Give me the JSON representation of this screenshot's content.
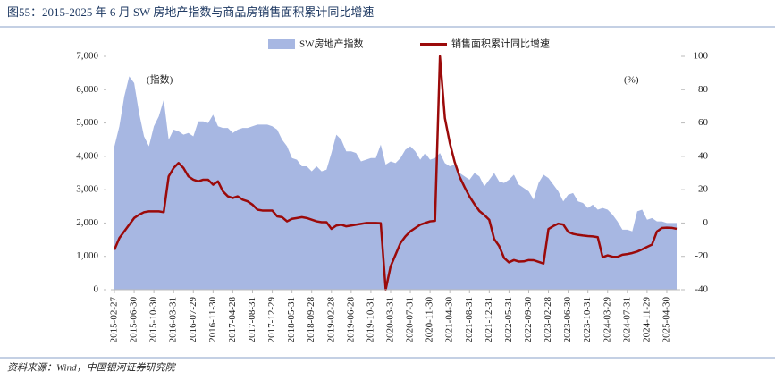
{
  "title": "图55：2015-2025 年 6 月 SW 房地产指数与商品房销售面积累计同比增速",
  "source": "资料来源：Wind，中国银河证券研究院",
  "chart_data": {
    "type": "combo",
    "annotations": [
      "(指数)",
      "(%)"
    ],
    "categories": [
      "2015-02-27",
      null,
      null,
      null,
      "2015-06-30",
      null,
      null,
      null,
      "2015-10-30",
      null,
      null,
      null,
      "2016-03-31",
      null,
      null,
      null,
      "2016-07-29",
      null,
      null,
      null,
      "2016-11-30",
      null,
      null,
      null,
      "2017-04-28",
      null,
      null,
      null,
      "2017-08-31",
      null,
      null,
      null,
      "2017-12-29",
      null,
      null,
      null,
      "2018-05-31",
      null,
      null,
      null,
      "2018-09-28",
      null,
      null,
      null,
      "2019-02-28",
      null,
      null,
      null,
      "2019-06-28",
      null,
      null,
      null,
      "2019-10-31",
      null,
      null,
      null,
      "2020-03-31",
      null,
      null,
      null,
      "2020-07-31",
      null,
      null,
      null,
      "2020-11-30",
      null,
      null,
      null,
      "2021-04-30",
      null,
      null,
      null,
      "2021-08-31",
      null,
      null,
      null,
      "2021-12-31",
      null,
      null,
      null,
      "2022-05-31",
      null,
      null,
      null,
      "2022-09-30",
      null,
      null,
      null,
      "2023-02-28",
      null,
      null,
      null,
      "2023-06-30",
      null,
      null,
      null,
      "2023-10-31",
      null,
      null,
      null,
      "2024-03-29",
      null,
      null,
      null,
      "2024-07-31",
      null,
      null,
      null,
      "2024-11-29",
      null,
      null,
      null,
      "2025-04-30",
      null,
      null
    ],
    "series": [
      {
        "name": "SW房地产指数",
        "type": "area",
        "color": "#a7b7e2",
        "values": [
          4300,
          4900,
          5800,
          6400,
          6200,
          5300,
          4600,
          4300,
          4900,
          5200,
          5700,
          4500,
          4800,
          4750,
          4650,
          4700,
          4600,
          5050,
          5050,
          5000,
          5250,
          4900,
          4850,
          4850,
          4700,
          4800,
          4850,
          4850,
          4900,
          4950,
          4950,
          4950,
          4900,
          4800,
          4500,
          4300,
          3950,
          3900,
          3700,
          3700,
          3550,
          3700,
          3550,
          3600,
          4100,
          4650,
          4500,
          4150,
          4150,
          4100,
          3850,
          3900,
          3950,
          3950,
          4350,
          3750,
          3850,
          3800,
          3950,
          4200,
          4300,
          4150,
          3900,
          4100,
          3900,
          3950,
          4100,
          3800,
          3700,
          3750,
          3500,
          3400,
          3300,
          3500,
          3400,
          3100,
          3300,
          3500,
          3250,
          3200,
          3300,
          3450,
          3150,
          3050,
          2950,
          2700,
          3200,
          3450,
          3350,
          3150,
          2950,
          2650,
          2850,
          2900,
          2650,
          2600,
          2450,
          2550,
          2400,
          2450,
          2400,
          2250,
          2050,
          1800,
          1800,
          1750,
          2350,
          2400,
          2100,
          2150,
          2050,
          2050,
          2000,
          2000,
          2000
        ]
      },
      {
        "name": "销售面积累计同比增速",
        "type": "line",
        "axis": "y2",
        "color": "#9b0a0a",
        "values": [
          -16,
          -9,
          -5,
          -1,
          3,
          5,
          6.5,
          7,
          7,
          7,
          6.5,
          28,
          33,
          36,
          33,
          28,
          26,
          25,
          26,
          26,
          23,
          25,
          19,
          16,
          15,
          16,
          14,
          13,
          11,
          8,
          7.5,
          7.5,
          7.5,
          4,
          3.5,
          1,
          2.5,
          3,
          3.5,
          3,
          2,
          1,
          0.5,
          0.5,
          -3.5,
          -1.5,
          -1,
          -2,
          -1.5,
          -1,
          -0.5,
          0,
          0,
          0,
          -0.1,
          -39.9,
          -26,
          -19,
          -12,
          -8,
          -5,
          -3,
          -1,
          0,
          1,
          1.3,
          100,
          63,
          48,
          36.5,
          27.7,
          21.5,
          15.9,
          11.3,
          7.2,
          4.8,
          1.9,
          -9.6,
          -13.8,
          -20.9,
          -23.6,
          -22.2,
          -23.1,
          -23,
          -22.2,
          -22.3,
          -23.3,
          -24.3,
          -3.6,
          -1.8,
          -0.4,
          -0.9,
          -5.3,
          -6.5,
          -7.1,
          -7.5,
          -7.8,
          -8,
          -8.5,
          -20.5,
          -19.4,
          -20.2,
          -20.3,
          -19,
          -18.6,
          -18,
          -17.1,
          -15.8,
          -14.3,
          -12.9,
          -5.1,
          -3,
          -2.8,
          -2.9,
          -3.5
        ]
      }
    ],
    "ylim": [
      0,
      7000
    ],
    "yticks": [
      0,
      {
        "value": 1000,
        "label": "1,000"
      },
      {
        "value": 2000,
        "label": "2,000"
      },
      {
        "value": 3000,
        "label": "3,000"
      },
      {
        "value": 4000,
        "label": "4,000"
      },
      {
        "value": 5000,
        "label": "5,000"
      },
      {
        "value": 6000,
        "label": "6,000"
      },
      {
        "value": 7000,
        "label": "7,000"
      }
    ],
    "y2lim": [
      -40,
      100
    ],
    "y2ticks": [
      -40,
      -20,
      0,
      20,
      40,
      60,
      80,
      100
    ],
    "grid": false,
    "legend": "top"
  }
}
